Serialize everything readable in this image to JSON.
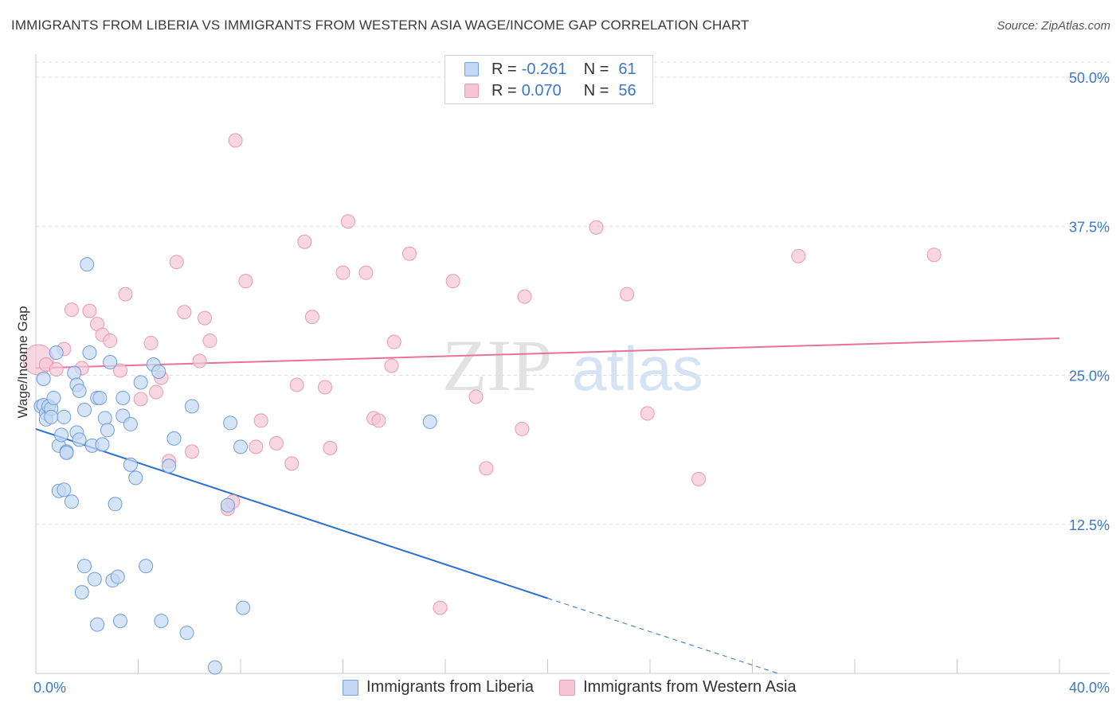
{
  "title": "IMMIGRANTS FROM LIBERIA VS IMMIGRANTS FROM WESTERN ASIA WAGE/INCOME GAP CORRELATION CHART",
  "source": "Source: ZipAtlas.com",
  "watermark": {
    "zip": "ZIP",
    "atlas": "atlas"
  },
  "colors": {
    "blue": "#3b78c9",
    "blue_fill": "#c5d9f4",
    "blue_line": "#2a6fd6",
    "pink_fill": "#f7c6d6",
    "pink_line": "#e8739a",
    "grid": "#dcdcdc"
  },
  "legend": {
    "series": [
      {
        "r_label": "R =",
        "r_value": "-0.261",
        "n_label": "N =",
        "n_value": "61"
      },
      {
        "r_label": "R =",
        "r_value": "0.070",
        "n_label": "N =",
        "n_value": "56"
      }
    ]
  },
  "chart_data": {
    "type": "scatter",
    "title": "IMMIGRANTS FROM LIBERIA VS IMMIGRANTS FROM WESTERN ASIA WAGE/INCOME GAP CORRELATION CHART",
    "xlabel": "",
    "ylabel": "Wage/Income Gap",
    "xlim": [
      0,
      40
    ],
    "ylim": [
      0,
      50
    ],
    "x_tick_labels": [
      "0.0%",
      "40.0%"
    ],
    "y_ticks": [
      12.5,
      25.0,
      37.5,
      50.0
    ],
    "y_tick_labels": [
      "12.5%",
      "25.0%",
      "37.5%",
      "50.0%"
    ],
    "series": [
      {
        "name": "Immigrants from Liberia",
        "color": "#3b78c9",
        "trend": {
          "x0": 0,
          "y0": 20.5,
          "x1": 20,
          "y1": 6.3,
          "dashed_to_x": 29,
          "dashed_to_y": 0
        },
        "points": [
          [
            0.2,
            22.4
          ],
          [
            0.3,
            24.7
          ],
          [
            0.3,
            22.5
          ],
          [
            0.4,
            21.8
          ],
          [
            0.4,
            21.3
          ],
          [
            0.5,
            22.4
          ],
          [
            0.6,
            22.2
          ],
          [
            0.6,
            21.5
          ],
          [
            0.7,
            23.1
          ],
          [
            0.8,
            26.9
          ],
          [
            0.9,
            19.1
          ],
          [
            0.9,
            15.3
          ],
          [
            1.0,
            20.0
          ],
          [
            1.1,
            21.5
          ],
          [
            1.1,
            15.4
          ],
          [
            1.2,
            18.6
          ],
          [
            1.2,
            18.5
          ],
          [
            1.4,
            14.4
          ],
          [
            1.5,
            25.2
          ],
          [
            1.6,
            20.2
          ],
          [
            1.6,
            24.2
          ],
          [
            1.7,
            23.7
          ],
          [
            1.7,
            19.6
          ],
          [
            1.8,
            6.8
          ],
          [
            1.9,
            22.1
          ],
          [
            1.9,
            9.0
          ],
          [
            2.0,
            34.3
          ],
          [
            2.1,
            26.9
          ],
          [
            2.2,
            19.1
          ],
          [
            2.3,
            7.9
          ],
          [
            2.4,
            23.1
          ],
          [
            2.4,
            4.1
          ],
          [
            2.5,
            23.1
          ],
          [
            2.6,
            19.2
          ],
          [
            2.7,
            21.4
          ],
          [
            2.8,
            20.4
          ],
          [
            2.9,
            26.1
          ],
          [
            3.0,
            7.8
          ],
          [
            3.1,
            14.2
          ],
          [
            3.2,
            8.1
          ],
          [
            3.3,
            4.4
          ],
          [
            3.4,
            21.6
          ],
          [
            3.4,
            23.1
          ],
          [
            3.7,
            17.5
          ],
          [
            3.7,
            20.9
          ],
          [
            3.9,
            16.4
          ],
          [
            4.1,
            24.4
          ],
          [
            4.3,
            9.0
          ],
          [
            4.6,
            25.9
          ],
          [
            4.8,
            25.3
          ],
          [
            4.9,
            4.4
          ],
          [
            5.2,
            17.4
          ],
          [
            5.4,
            19.7
          ],
          [
            5.9,
            3.4
          ],
          [
            6.1,
            22.4
          ],
          [
            7.0,
            0.5
          ],
          [
            7.5,
            14.1
          ],
          [
            7.6,
            21.0
          ],
          [
            8.0,
            19.0
          ],
          [
            8.1,
            5.5
          ],
          [
            15.4,
            21.1
          ]
        ]
      },
      {
        "name": "Immigrants from Western Asia",
        "color": "#e8739a",
        "trend": {
          "x0": 0,
          "y0": 25.6,
          "x1": 40,
          "y1": 28.1
        },
        "points": [
          [
            0.1,
            26.3
          ],
          [
            0.4,
            25.9
          ],
          [
            0.8,
            25.5
          ],
          [
            1.1,
            27.2
          ],
          [
            1.4,
            30.5
          ],
          [
            1.8,
            25.6
          ],
          [
            2.1,
            30.4
          ],
          [
            2.4,
            29.3
          ],
          [
            2.6,
            28.4
          ],
          [
            2.9,
            27.9
          ],
          [
            3.3,
            25.4
          ],
          [
            3.5,
            31.8
          ],
          [
            4.1,
            23.0
          ],
          [
            4.5,
            27.7
          ],
          [
            4.7,
            23.6
          ],
          [
            4.9,
            24.8
          ],
          [
            5.2,
            17.8
          ],
          [
            5.5,
            34.5
          ],
          [
            5.8,
            30.3
          ],
          [
            6.1,
            18.6
          ],
          [
            6.4,
            26.2
          ],
          [
            6.6,
            29.8
          ],
          [
            6.8,
            27.9
          ],
          [
            7.5,
            13.8
          ],
          [
            7.7,
            14.4
          ],
          [
            7.8,
            44.7
          ],
          [
            8.2,
            32.9
          ],
          [
            8.6,
            19.0
          ],
          [
            8.8,
            21.2
          ],
          [
            9.4,
            19.3
          ],
          [
            10.0,
            17.6
          ],
          [
            10.2,
            24.2
          ],
          [
            10.5,
            36.2
          ],
          [
            10.8,
            29.9
          ],
          [
            11.3,
            24.0
          ],
          [
            11.5,
            18.9
          ],
          [
            12.0,
            33.6
          ],
          [
            12.2,
            37.9
          ],
          [
            12.9,
            33.6
          ],
          [
            13.2,
            21.4
          ],
          [
            13.4,
            21.2
          ],
          [
            13.9,
            25.8
          ],
          [
            14.0,
            27.8
          ],
          [
            14.6,
            35.2
          ],
          [
            15.8,
            5.5
          ],
          [
            16.3,
            32.9
          ],
          [
            17.2,
            23.2
          ],
          [
            17.6,
            17.2
          ],
          [
            19.0,
            20.5
          ],
          [
            19.1,
            31.6
          ],
          [
            21.9,
            37.4
          ],
          [
            23.1,
            31.8
          ],
          [
            23.9,
            21.8
          ],
          [
            25.9,
            16.3
          ],
          [
            29.8,
            35.0
          ],
          [
            35.1,
            35.1
          ]
        ]
      }
    ]
  },
  "bottom_legend": [
    "Immigrants from Liberia",
    "Immigrants from Western Asia"
  ]
}
